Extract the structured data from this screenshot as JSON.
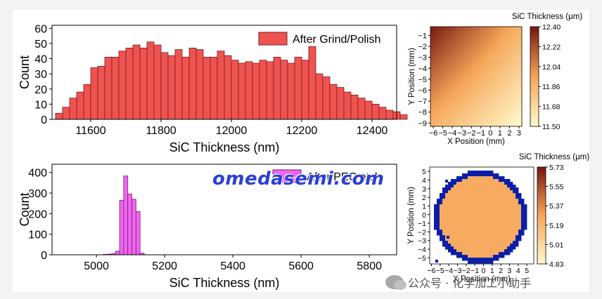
{
  "watermark_text": "omedasemi.com",
  "wechat_text": "公众号 · 化学加工小助手",
  "colors": {
    "top_bar_fill": "#ef5350",
    "top_bar_stroke": "#7a1d1d",
    "bottom_bar_fill": "#ee66ee",
    "bottom_bar_stroke": "#7a1a7a",
    "axis": "#000000",
    "heat_low": "#fff7c8",
    "heat_mid": "#f5a65a",
    "heat_high": "#7a1a10",
    "edge_blue": "#0a1ea8"
  },
  "chart_data": [
    {
      "type": "bar",
      "xlabel": "SiC Thickness (nm)",
      "ylabel": "Count",
      "legend": "After Grind/Polish",
      "legend_position": "top-right",
      "xlim": [
        11490,
        12470
      ],
      "ylim": [
        0,
        62
      ],
      "xticks": [
        11600,
        11800,
        12000,
        12200,
        12400
      ],
      "yticks": [
        0,
        10,
        20,
        30,
        40,
        50,
        60
      ],
      "bin_start": 11500,
      "bin_width": 20,
      "values": [
        4,
        8,
        14,
        18,
        23,
        34,
        35,
        41,
        41,
        45,
        47,
        49,
        47,
        51,
        49,
        44,
        42,
        46,
        41,
        47,
        46,
        41,
        41,
        45,
        42,
        39,
        37,
        38,
        37,
        39,
        38,
        41,
        39,
        37,
        41,
        39,
        48,
        30,
        28,
        23,
        21,
        18,
        16,
        14,
        12,
        10,
        8,
        6,
        5,
        3
      ]
    },
    {
      "type": "bar",
      "xlabel": "SiC Thickness (nm)",
      "ylabel": "Count",
      "legend": "After PEC etch",
      "legend_position": "top-right",
      "xlim": [
        4870,
        5880
      ],
      "ylim": [
        0,
        440
      ],
      "xticks": [
        5000,
        5200,
        5400,
        5600,
        5800
      ],
      "yticks": [
        0,
        100,
        200,
        300,
        400
      ],
      "bin_start": 5020,
      "bin_width": 12,
      "values": [
        2,
        3,
        6,
        18,
        265,
        383,
        295,
        270,
        210,
        8
      ]
    },
    {
      "type": "heatmap",
      "title": "SiC Thickness (μm)",
      "xlabel": "X Position (mm)",
      "ylabel": "Y Position (mm)",
      "xticks": [
        -6,
        -5,
        -4,
        -3,
        -2,
        -1,
        0,
        1,
        2,
        3
      ],
      "yticks": [
        -1,
        -2,
        -3,
        -4,
        -5,
        -6,
        -7,
        -8,
        -9
      ],
      "xlim": [
        -6.3,
        3.3
      ],
      "ylim": [
        -9.3,
        -0.2
      ],
      "colorbar_ticks": [
        12.4,
        12.22,
        12.04,
        11.86,
        11.68,
        11.5
      ],
      "colorbar_labels": [
        "12.40",
        "12.22",
        "12.04",
        "11.86",
        "11.68",
        "11.50"
      ],
      "zlim": [
        11.5,
        12.4
      ]
    },
    {
      "type": "heatmap",
      "title": "SiC Thickness (μm)",
      "xlabel": "X Position (mm)",
      "ylabel": "Y Position (mm)",
      "xticks": [
        -6,
        -5,
        -4,
        -3,
        -2,
        -1,
        0,
        1,
        2,
        3,
        4,
        5
      ],
      "xtick_labels": [
        "-6",
        "-5",
        "-4",
        "-3",
        "-2",
        "-1",
        "0",
        "1",
        "2",
        "3",
        "4",
        "5"
      ],
      "yticks": [
        5,
        4,
        3,
        2,
        1,
        0,
        -1,
        -2,
        -3,
        -4,
        -5
      ],
      "xlim": [
        -6.2,
        5.8
      ],
      "ylim": [
        -5.7,
        5.5
      ],
      "colorbar_ticks": [
        5.73,
        5.55,
        5.37,
        5.19,
        5.01,
        4.83
      ],
      "colorbar_labels": [
        "5.73",
        "5.55",
        "5.37",
        "5.19",
        "5.01",
        "4.83"
      ],
      "zlim": [
        4.83,
        5.73
      ],
      "wafer_value": 5.25,
      "edge_value": 4.83
    }
  ]
}
